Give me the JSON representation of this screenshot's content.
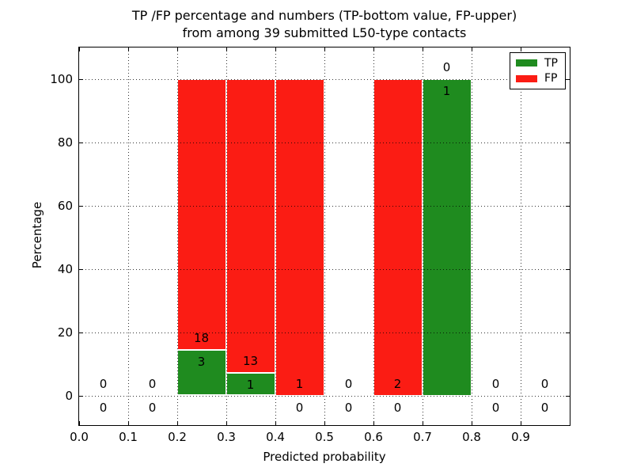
{
  "chart_data": {
    "type": "bar",
    "stacked": true,
    "title_lines": [
      "TP /FP percentage and numbers (TP-bottom value, FP-upper)",
      "from among 39 submitted L50-type contacts"
    ],
    "xlabel": "Predicted probability",
    "ylabel": "Percentage",
    "total_contacts": 39,
    "xlim": [
      0.0,
      1.0
    ],
    "ylim": [
      -10,
      110
    ],
    "x_ticks": [
      0.0,
      0.1,
      0.2,
      0.3,
      0.4,
      0.5,
      0.6,
      0.7,
      0.8,
      0.9
    ],
    "x_tick_labels": [
      "0.0",
      "0.1",
      "0.2",
      "0.3",
      "0.4",
      "0.5",
      "0.6",
      "0.7",
      "0.8",
      "0.9"
    ],
    "y_ticks": [
      0,
      20,
      40,
      60,
      80,
      100
    ],
    "y_tick_labels": [
      "0",
      "20",
      "40",
      "60",
      "80",
      "100"
    ],
    "grid": "dotted, both axes, drawn above bars",
    "colors": {
      "tp": "#1f8b1f",
      "fp": "#fb1c14"
    },
    "legend": {
      "position": "upper-right",
      "entries": [
        {
          "label": "TP",
          "color": "#1f8b1f"
        },
        {
          "label": "FP",
          "color": "#fb1c14"
        }
      ]
    },
    "bins": [
      {
        "range": [
          0.0,
          0.1
        ],
        "tp": 0,
        "fp": 0,
        "tp_pct": 0,
        "fp_pct": 0
      },
      {
        "range": [
          0.1,
          0.2
        ],
        "tp": 0,
        "fp": 0,
        "tp_pct": 0,
        "fp_pct": 0
      },
      {
        "range": [
          0.2,
          0.3
        ],
        "tp": 3,
        "fp": 18,
        "tp_pct": 14.2857,
        "fp_pct": 85.7143
      },
      {
        "range": [
          0.3,
          0.4
        ],
        "tp": 1,
        "fp": 13,
        "tp_pct": 7.1429,
        "fp_pct": 92.8571
      },
      {
        "range": [
          0.4,
          0.5
        ],
        "tp": 0,
        "fp": 1,
        "tp_pct": 0,
        "fp_pct": 100
      },
      {
        "range": [
          0.5,
          0.6
        ],
        "tp": 0,
        "fp": 0,
        "tp_pct": 0,
        "fp_pct": 0
      },
      {
        "range": [
          0.6,
          0.7
        ],
        "tp": 0,
        "fp": 2,
        "tp_pct": 0,
        "fp_pct": 100
      },
      {
        "range": [
          0.7,
          0.8
        ],
        "tp": 1,
        "fp": 0,
        "tp_pct": 100,
        "fp_pct": 0
      },
      {
        "range": [
          0.8,
          0.9
        ],
        "tp": 0,
        "fp": 0,
        "tp_pct": 0,
        "fp_pct": 0
      },
      {
        "range": [
          0.9,
          1.0
        ],
        "tp": 0,
        "fp": 0,
        "tp_pct": 0,
        "fp_pct": 0
      }
    ]
  }
}
